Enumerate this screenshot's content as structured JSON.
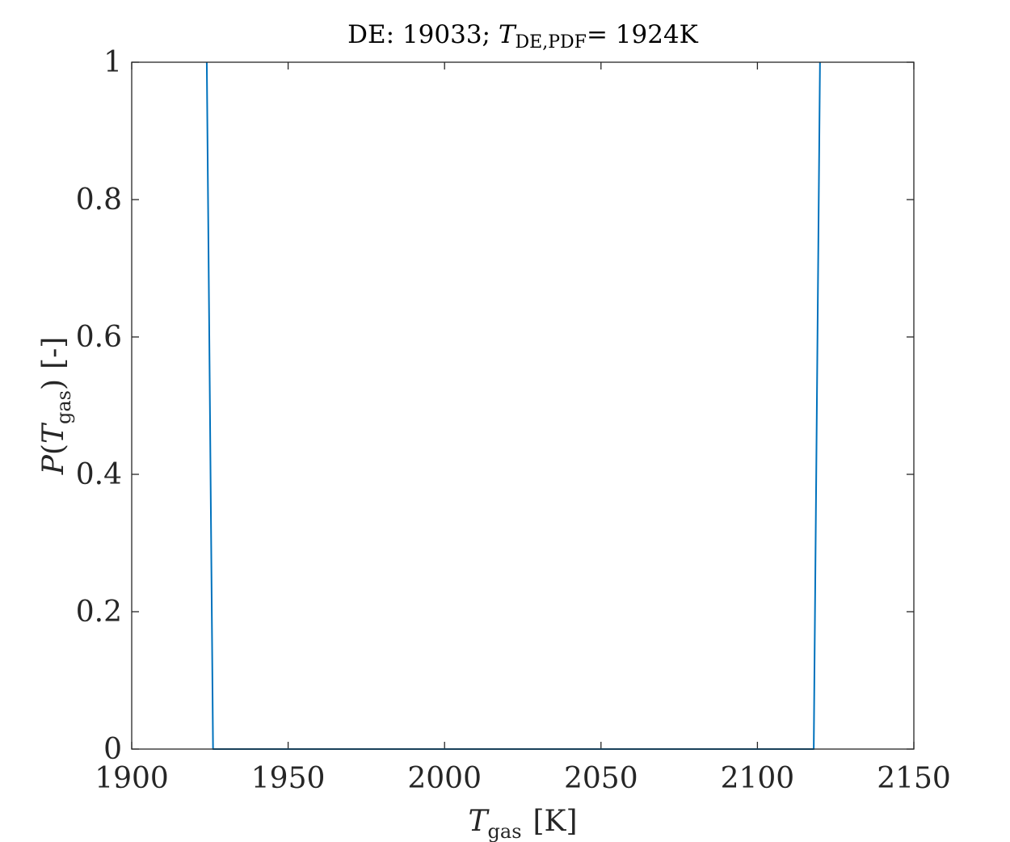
{
  "chart_data": {
    "type": "line",
    "title": {
      "prefix": "DE: 19033; ",
      "var": "T",
      "sub": "DE,PDF",
      "suffix": "= 1924K"
    },
    "xlabel": {
      "var": "T",
      "sub": "gas",
      "unit": "[K]"
    },
    "ylabel": {
      "func": "P",
      "open": "(",
      "var": "T",
      "sub": "gas",
      "close": ")",
      "unit": "[-]"
    },
    "xlim": [
      1900,
      2150
    ],
    "ylim": [
      0,
      1
    ],
    "xticks": [
      1900,
      1950,
      2000,
      2050,
      2100,
      2150
    ],
    "yticks": [
      0,
      0.2,
      0.4,
      0.6,
      0.8,
      1
    ],
    "grid": false,
    "series": [
      {
        "color": "#0072BD",
        "x": [
          1924,
          1926,
          2118,
          2120
        ],
        "y": [
          1,
          0,
          0,
          1
        ]
      }
    ]
  }
}
